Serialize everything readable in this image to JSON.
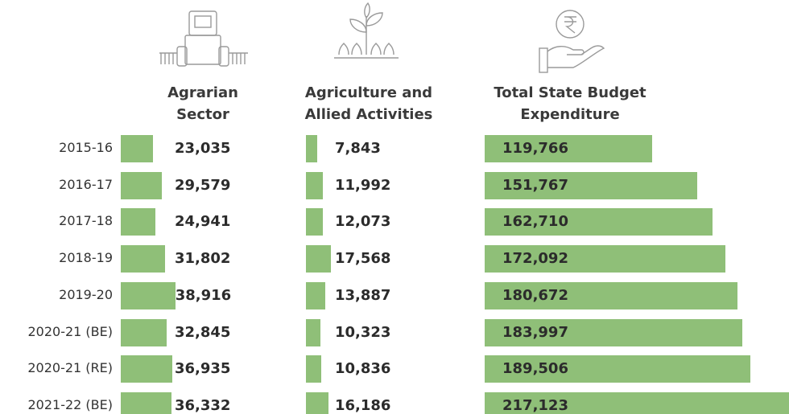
{
  "chart_data": {
    "type": "bar",
    "categories": [
      "2015-16",
      "2016-17",
      "2017-18",
      "2018-19",
      "2019-20",
      "2020-21 (BE)",
      "2020-21 (RE)",
      "2021-22 (BE)"
    ],
    "series": [
      {
        "name": "Agrarian Sector",
        "color": "#8fbf78",
        "values": [
          23035,
          29579,
          24941,
          31802,
          38916,
          32845,
          36935,
          36332
        ],
        "value_labels": [
          "23,035",
          "29,579",
          "24,941",
          "31,802",
          "38,916",
          "32,845",
          "36,935",
          "36,332"
        ]
      },
      {
        "name": "Agriculture and Allied Activities",
        "color": "#8fbf78",
        "values": [
          7843,
          11992,
          12073,
          17568,
          13887,
          10323,
          10836,
          16186
        ],
        "value_labels": [
          "7,843",
          "11,992",
          "12,073",
          "17,568",
          "13,887",
          "10,323",
          "10,836",
          "16,186"
        ]
      },
      {
        "name": "Total State Budget Expenditure",
        "color": "#8fbf78",
        "values": [
          119766,
          151767,
          162710,
          172092,
          180672,
          183997,
          189506,
          217123
        ],
        "value_labels": [
          "119,766",
          "151,767",
          "162,710",
          "172,092",
          "180,672",
          "183,997",
          "189,506",
          "217,123"
        ]
      }
    ]
  }
}
